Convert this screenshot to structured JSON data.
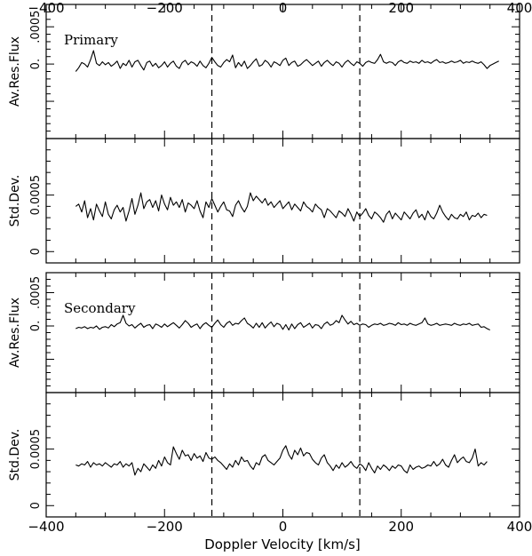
{
  "chart_data": {
    "type": "line",
    "xlabel": "Doppler Velocity [km/s]",
    "xlim": [
      -400,
      400
    ],
    "x_ticks": [
      -400,
      -200,
      0,
      200,
      400
    ],
    "x_tick_labels": [
      "−400",
      "−200",
      "0",
      "200",
      "400"
    ],
    "vlines": [
      -120,
      130
    ],
    "x_start": -350,
    "x_step": 5,
    "panels": [
      {
        "id": "primary-flux",
        "label": "Primary",
        "ylabel": "Av.Res.Flux",
        "ylim": [
          -0.001,
          0.0008
        ],
        "y_ticks": [
          0,
          0.0005
        ],
        "y_tick_labels": [
          "0.",
          ".0005"
        ],
        "values": [
          -0.0001,
          -5e-05,
          2e-05,
          0,
          -4e-05,
          6e-05,
          0.00018,
          1e-05,
          -2e-05,
          3e-05,
          -1e-05,
          2e-05,
          -3e-05,
          0,
          4e-05,
          -6e-05,
          1e-05,
          -2e-05,
          5e-05,
          -4e-05,
          3e-05,
          5e-05,
          -2e-05,
          -8e-05,
          2e-05,
          4e-05,
          -3e-05,
          1e-05,
          -5e-05,
          -2e-05,
          3e-05,
          -4e-05,
          1e-05,
          4e-05,
          -3e-05,
          -6e-05,
          2e-05,
          5e-05,
          -1e-05,
          3e-05,
          1e-05,
          -3e-05,
          4e-05,
          -2e-05,
          -5e-05,
          1e-05,
          9e-05,
          3e-05,
          -2e-05,
          -4e-05,
          2e-05,
          6e-05,
          3e-05,
          0.00012,
          -5e-05,
          2e-05,
          -3e-05,
          4e-05,
          -6e-05,
          -2e-05,
          3e-05,
          7e-05,
          -3e-05,
          -1e-05,
          5e-05,
          2e-05,
          -4e-05,
          3e-05,
          1e-05,
          -2e-05,
          5e-05,
          8e-05,
          -2e-05,
          2e-05,
          4e-05,
          -3e-05,
          -1e-05,
          3e-05,
          6e-05,
          2e-05,
          -2e-05,
          1e-05,
          4e-05,
          -3e-05,
          2e-05,
          5e-05,
          1e-05,
          -2e-05,
          3e-05,
          1e-05,
          -4e-05,
          2e-05,
          5e-05,
          1e-05,
          -2e-05,
          3e-05,
          1e-05,
          -3e-05,
          2e-05,
          4e-05,
          2e-05,
          1e-05,
          6e-05,
          0.00013,
          3e-05,
          1e-05,
          3e-05,
          2e-05,
          -2e-05,
          3e-05,
          5e-05,
          2e-05,
          1e-05,
          4e-05,
          2e-05,
          3e-05,
          1e-05,
          5e-05,
          2e-05,
          3e-05,
          1e-05,
          4e-05,
          6e-05,
          2e-05,
          3e-05,
          1e-05,
          2e-05,
          4e-05,
          2e-05,
          3e-05,
          5e-05,
          1e-05,
          3e-05,
          2e-05,
          4e-05,
          2e-05,
          1e-05,
          3e-05,
          -1e-05,
          -6e-05,
          -2e-05,
          0,
          2e-05,
          4e-05
        ]
      },
      {
        "id": "primary-std",
        "label": "",
        "ylabel": "Std.Dev.",
        "ylim": [
          -0.0001,
          0.001
        ],
        "y_ticks": [
          0,
          0.0005
        ],
        "y_tick_labels": [
          "0",
          "0.0005"
        ],
        "values": [
          0.0004,
          0.00042,
          0.00035,
          0.00045,
          0.0003,
          0.00038,
          0.00028,
          0.00042,
          0.00036,
          0.00031,
          0.00044,
          0.00033,
          0.00029,
          0.00037,
          0.00041,
          0.00035,
          0.00039,
          0.00027,
          0.00036,
          0.00047,
          0.00033,
          0.00041,
          0.00052,
          0.00038,
          0.00044,
          0.00046,
          0.00039,
          0.00045,
          0.00036,
          0.0005,
          0.00042,
          0.00037,
          0.00048,
          0.00041,
          0.00044,
          0.00039,
          0.00046,
          0.00035,
          0.00043,
          0.00041,
          0.00038,
          0.00045,
          0.00036,
          0.0003,
          0.00044,
          0.00039,
          0.00047,
          0.00041,
          0.00035,
          0.0004,
          0.00044,
          0.00037,
          0.00036,
          0.00031,
          0.00041,
          0.00045,
          0.00039,
          0.00035,
          0.0004,
          0.00052,
          0.00045,
          0.00049,
          0.00046,
          0.00043,
          0.00047,
          0.00041,
          0.00044,
          0.00039,
          0.00042,
          0.00045,
          0.00038,
          0.00041,
          0.00044,
          0.00037,
          0.00042,
          0.00039,
          0.00036,
          0.00044,
          0.0004,
          0.00038,
          0.00035,
          0.00042,
          0.00039,
          0.00037,
          0.0003,
          0.00038,
          0.00036,
          0.00033,
          0.0003,
          0.00036,
          0.00034,
          0.00031,
          0.00038,
          0.00033,
          0.00027,
          0.00035,
          0.00031,
          0.00034,
          0.00038,
          0.00032,
          0.00029,
          0.00035,
          0.00033,
          0.0003,
          0.00026,
          0.00033,
          0.00036,
          0.00029,
          0.00034,
          0.00031,
          0.00028,
          0.00035,
          0.00032,
          0.00029,
          0.00034,
          0.00037,
          0.0003,
          0.00033,
          0.00028,
          0.00036,
          0.00031,
          0.00029,
          0.00034,
          0.00041,
          0.00035,
          0.00031,
          0.00028,
          0.00033,
          0.0003,
          0.00029,
          0.00033,
          0.00031,
          0.00035,
          0.00028,
          0.00032,
          0.00031,
          0.00034,
          0.0003,
          0.00033,
          0.00032
        ]
      },
      {
        "id": "secondary-flux",
        "label": "Secondary",
        "ylabel": "Av.Res.Flux",
        "ylim": [
          -0.001,
          0.0008
        ],
        "y_ticks": [
          0,
          0.0005
        ],
        "y_tick_labels": [
          "0.",
          ".0005"
        ],
        "values": [
          -4e-05,
          -2e-05,
          -3e-05,
          -1e-05,
          -4e-05,
          -2e-05,
          -3e-05,
          0,
          -5e-05,
          -2e-05,
          -1e-05,
          -3e-05,
          2e-05,
          -1e-05,
          3e-05,
          5e-05,
          0.00016,
          4e-05,
          0,
          2e-05,
          -3e-05,
          1e-05,
          4e-05,
          -2e-05,
          1e-05,
          2e-05,
          -4e-05,
          3e-05,
          1e-05,
          -2e-05,
          3e-05,
          -1e-05,
          2e-05,
          5e-05,
          1e-05,
          -3e-05,
          2e-05,
          8e-05,
          4e-05,
          -2e-05,
          1e-05,
          3e-05,
          -4e-05,
          2e-05,
          5e-05,
          1e-05,
          -2e-05,
          4e-05,
          9e-05,
          2e-05,
          -2e-05,
          4e-05,
          7e-05,
          1e-05,
          4e-05,
          3e-05,
          8e-05,
          0.00012,
          4e-05,
          1e-05,
          -3e-05,
          4e-05,
          -2e-05,
          5e-05,
          -3e-05,
          2e-05,
          6e-05,
          -1e-05,
          4e-05,
          2e-05,
          -5e-05,
          2e-05,
          -6e-05,
          3e-05,
          -4e-05,
          2e-05,
          5e-05,
          -2e-05,
          1e-05,
          4e-05,
          -3e-05,
          2e-05,
          1e-05,
          -4e-05,
          3e-05,
          6e-05,
          1e-05,
          3e-05,
          8e-05,
          5e-05,
          0.00016,
          9e-05,
          3e-05,
          7e-05,
          2e-05,
          4e-05,
          1e-05,
          3e-05,
          2e-05,
          -2e-05,
          1e-05,
          3e-05,
          2e-05,
          4e-05,
          1e-05,
          2e-05,
          4e-05,
          3e-05,
          1e-05,
          5e-05,
          2e-05,
          3e-05,
          1e-05,
          4e-05,
          2e-05,
          1e-05,
          3e-05,
          5e-05,
          0.00012,
          3e-05,
          1e-05,
          2e-05,
          4e-05,
          1e-05,
          2e-05,
          3e-05,
          2e-05,
          1e-05,
          4e-05,
          2e-05,
          1e-05,
          3e-05,
          2e-05,
          4e-05,
          1e-05,
          2e-05,
          3e-05,
          -2e-05,
          -1e-05,
          -4e-05,
          -6e-05
        ]
      },
      {
        "id": "secondary-std",
        "label": "",
        "ylabel": "Std.Dev.",
        "ylim": [
          -0.0001,
          0.001
        ],
        "y_ticks": [
          0,
          0.0005
        ],
        "y_tick_labels": [
          "0",
          "0.0005"
        ],
        "values": [
          0.00036,
          0.00035,
          0.00037,
          0.00036,
          0.00039,
          0.00034,
          0.00038,
          0.00036,
          0.00037,
          0.00035,
          0.00038,
          0.00036,
          0.00034,
          0.00037,
          0.00036,
          0.00039,
          0.00034,
          0.00037,
          0.00035,
          0.00038,
          0.00027,
          0.00033,
          0.0003,
          0.00037,
          0.00034,
          0.00031,
          0.00036,
          0.00033,
          0.0004,
          0.00035,
          0.00043,
          0.00038,
          0.00036,
          0.00052,
          0.00046,
          0.00041,
          0.00049,
          0.00044,
          0.00045,
          0.0004,
          0.00046,
          0.00042,
          0.00044,
          0.00039,
          0.00047,
          0.00042,
          0.00041,
          0.00043,
          0.0004,
          0.00038,
          0.00035,
          0.00032,
          0.00037,
          0.00034,
          0.0004,
          0.00036,
          0.00043,
          0.00039,
          0.0004,
          0.00035,
          0.00032,
          0.00038,
          0.00036,
          0.00043,
          0.00045,
          0.0004,
          0.00038,
          0.00036,
          0.00039,
          0.00042,
          0.00049,
          0.00053,
          0.00045,
          0.00041,
          0.00049,
          0.00045,
          0.00051,
          0.00044,
          0.00047,
          0.00046,
          0.00041,
          0.00038,
          0.00036,
          0.00042,
          0.00045,
          0.00038,
          0.00035,
          0.00031,
          0.00036,
          0.00033,
          0.00038,
          0.00034,
          0.00036,
          0.00039,
          0.00035,
          0.00033,
          0.00037,
          0.00035,
          0.00031,
          0.00038,
          0.00033,
          0.00029,
          0.00035,
          0.00032,
          0.00036,
          0.00034,
          0.00031,
          0.00035,
          0.00033,
          0.00036,
          0.00035,
          0.00031,
          0.00029,
          0.00036,
          0.00032,
          0.00034,
          0.00035,
          0.00033,
          0.00034,
          0.00036,
          0.00035,
          0.00039,
          0.00035,
          0.00037,
          0.00041,
          0.00036,
          0.00034,
          0.0004,
          0.00045,
          0.00038,
          0.00041,
          0.00043,
          0.00039,
          0.00038,
          0.00042,
          0.0005,
          0.00035,
          0.00038,
          0.00036,
          0.00039
        ]
      }
    ]
  }
}
